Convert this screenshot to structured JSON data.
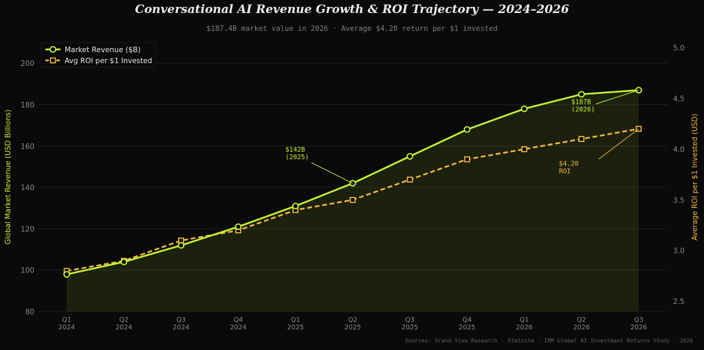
{
  "title": "Conversational AI Revenue Growth & ROI Trajectory — 2024–2026",
  "subtitle": "$187.4B market value in 2026 · Average $4.20 return per $1 invested",
  "source": "Sources: Grand View Research · Statista · IBM Global AI Investment Returns Study · 2026",
  "colors": {
    "background": "#0a0a0a",
    "revenue": "#c6f135",
    "roi": "#f4b942",
    "grid": "#1f1f1f",
    "axis_text": "#8a8a8a"
  },
  "chart_data": {
    "type": "line",
    "title": "Conversational AI Revenue Growth & ROI Trajectory — 2024–2026",
    "categories": [
      "Q1\n2024",
      "Q2\n2024",
      "Q3\n2024",
      "Q4\n2024",
      "Q1\n2025",
      "Q2\n2025",
      "Q3\n2025",
      "Q4\n2025",
      "Q1\n2026",
      "Q2\n2026",
      "Q3\n2026"
    ],
    "ylabel": "Global Market Revenue (USD Billions)",
    "y2label": "Average ROI per $1 Invested (USD)",
    "ylim": [
      80,
      210
    ],
    "y2lim": [
      2.4,
      5.05
    ],
    "yticks": [
      80,
      100,
      120,
      140,
      160,
      180,
      200
    ],
    "y2ticks": [
      2.5,
      3.0,
      3.5,
      4.0,
      4.5,
      5.0
    ],
    "legend_position": "top-left",
    "grid": true,
    "series": [
      {
        "name": "Market Revenue ($B)",
        "axis": "left",
        "style": "solid",
        "marker": "circle",
        "area_fill": true,
        "values": [
          98,
          104,
          112,
          121,
          131,
          142,
          155,
          168,
          178,
          185,
          187
        ]
      },
      {
        "name": "Avg ROI per $1 Invested",
        "axis": "right",
        "style": "dashed",
        "marker": "square",
        "values": [
          2.8,
          2.9,
          3.1,
          3.2,
          3.4,
          3.5,
          3.7,
          3.9,
          4.0,
          4.1,
          4.2
        ]
      }
    ],
    "annotations": [
      {
        "text": [
          "$142B",
          "(2025)"
        ],
        "series": 0,
        "point": 5,
        "color": "#c6f135"
      },
      {
        "text": [
          "$187B",
          "(2026)"
        ],
        "series": 0,
        "point": 10,
        "color": "#c6f135"
      },
      {
        "text": [
          "$4.20",
          "ROI"
        ],
        "series": 1,
        "point": 10,
        "color": "#f4b942"
      }
    ]
  }
}
